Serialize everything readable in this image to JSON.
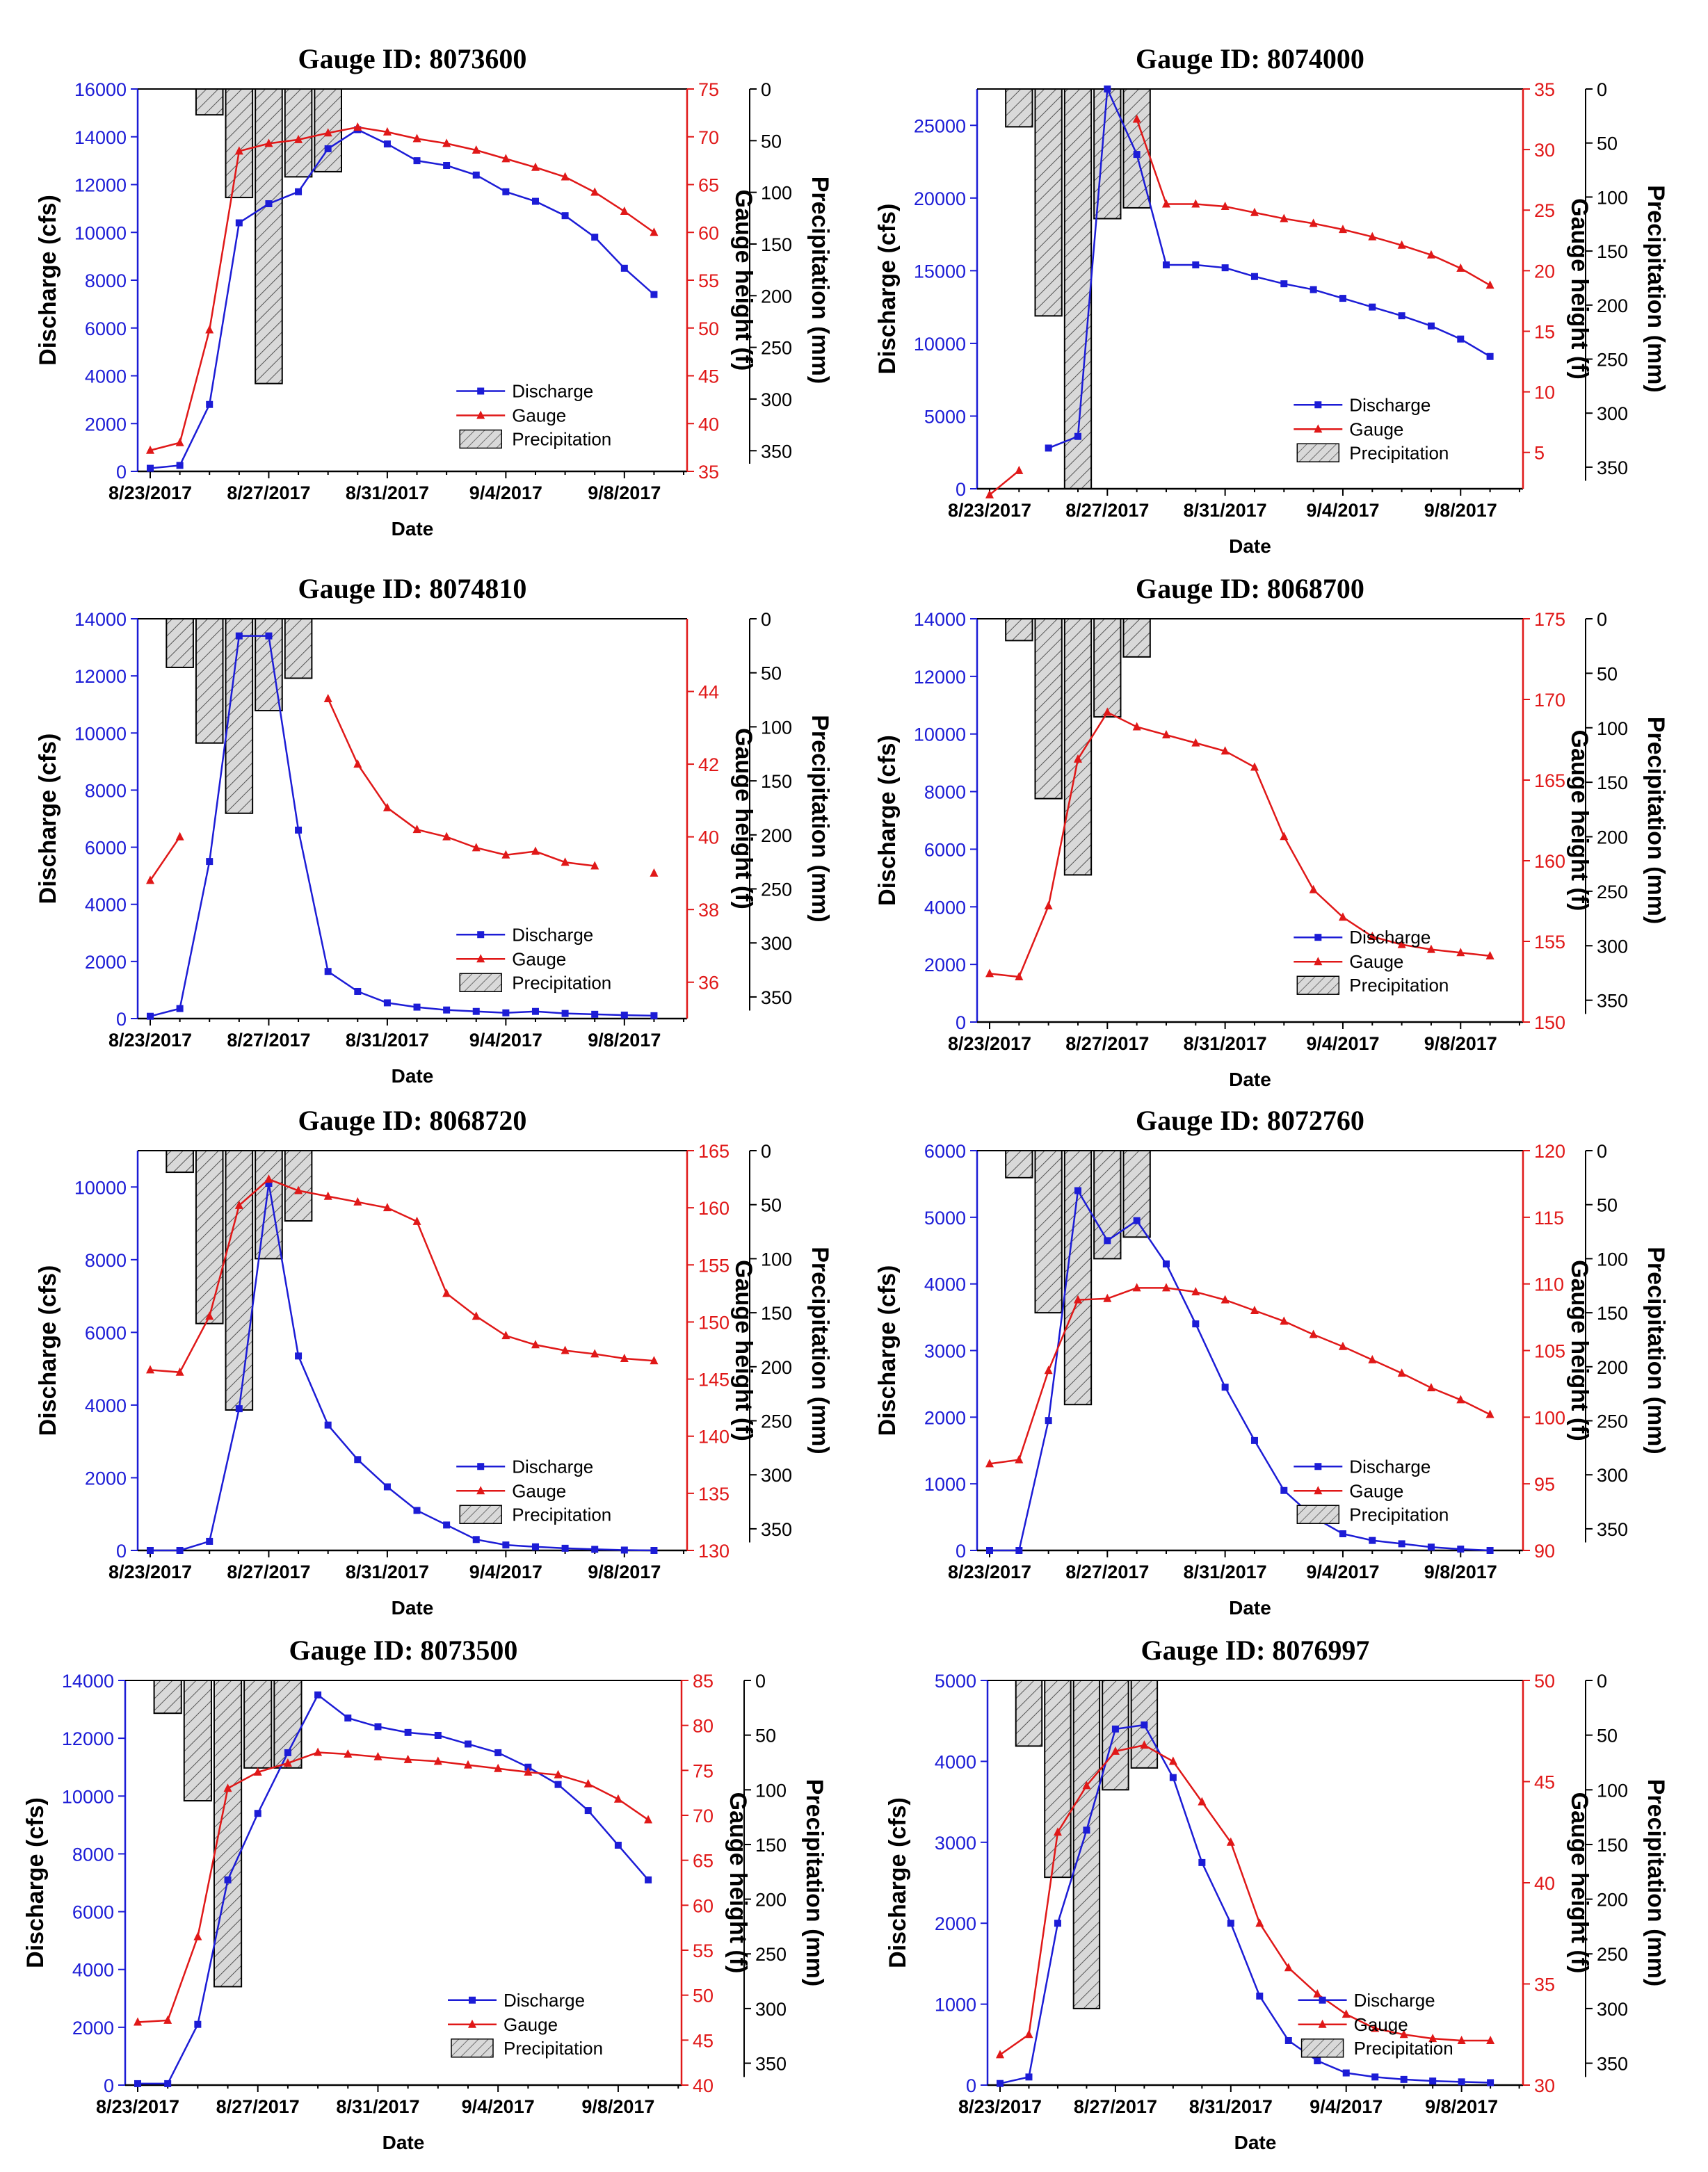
{
  "figure": {
    "common": {
      "dates": [
        "8/23/2017",
        "8/24/2017",
        "8/25/2017",
        "8/26/2017",
        "8/27/2017",
        "8/28/2017",
        "8/29/2017",
        "8/30/2017",
        "8/31/2017",
        "9/1/2017",
        "9/2/2017",
        "9/3/2017",
        "9/4/2017",
        "9/5/2017",
        "9/6/2017",
        "9/7/2017",
        "9/8/2017",
        "9/9/2017",
        "9/10/2017"
      ],
      "date_ticks": [
        "8/23/2017",
        "8/27/2017",
        "8/31/2017",
        "9/4/2017",
        "9/8/2017"
      ],
      "xlabel": "Date",
      "ylabel_left": "Discharge (cfs)",
      "ylabel_right": "Gauge height (f)",
      "ylabel_precip": "Precipitation (mm)",
      "precip_ticks": [
        0,
        50,
        100,
        150,
        200,
        250,
        300,
        350
      ],
      "legend": [
        "Discharge",
        "Gauge",
        "Precipitation"
      ],
      "colors": {
        "discharge": "#1c1cd6",
        "gauge": "#e01818",
        "bar_fill": "#d9d9d9",
        "axis": "#000000"
      }
    }
  },
  "chart_data": [
    {
      "type": "line",
      "title": "Gauge ID: 8073600",
      "categories_ref": "figure.common.dates",
      "ylim": [
        0,
        16000
      ],
      "yticks": [
        0,
        2000,
        4000,
        6000,
        8000,
        10000,
        12000,
        14000,
        16000
      ],
      "y2lim": [
        35,
        75
      ],
      "y2ticks": [
        35,
        40,
        45,
        50,
        55,
        60,
        65,
        70,
        75
      ],
      "precip_lim": [
        0,
        370
      ],
      "series": [
        {
          "name": "Discharge",
          "axis": "left",
          "values": [
            130,
            250,
            2800,
            10400,
            11200,
            11700,
            13500,
            14300,
            13700,
            13000,
            12800,
            12400,
            11700,
            11300,
            10700,
            9800,
            8500,
            7400,
            null
          ]
        },
        {
          "name": "Gauge",
          "axis": "right",
          "values": [
            37.2,
            38.0,
            49.8,
            68.5,
            69.3,
            69.7,
            70.4,
            71.0,
            70.5,
            69.8,
            69.3,
            68.6,
            67.7,
            66.8,
            65.8,
            64.2,
            62.2,
            60.0,
            null
          ]
        }
      ],
      "precipitation": [
        {
          "date": "8/25/2017",
          "value": 25
        },
        {
          "date": "8/26/2017",
          "value": 105
        },
        {
          "date": "8/27/2017",
          "value": 285
        },
        {
          "date": "8/28/2017",
          "value": 85
        },
        {
          "date": "8/29/2017",
          "value": 80
        }
      ],
      "xlabel": "Date",
      "ylabel": "Discharge (cfs)",
      "y2label": "Gauge height (f)",
      "y3label": "Precipitation (mm)"
    },
    {
      "type": "line",
      "title": "Gauge ID: 8074000",
      "categories_ref": "figure.common.dates",
      "ylim": [
        0,
        27500
      ],
      "yticks": [
        0,
        5000,
        10000,
        15000,
        20000,
        25000
      ],
      "y2lim": [
        2,
        35
      ],
      "y2ticks": [
        5,
        10,
        15,
        20,
        25,
        30,
        35
      ],
      "precip_lim": [
        0,
        370
      ],
      "series": [
        {
          "name": "Discharge",
          "axis": "left",
          "values": [
            null,
            null,
            2800,
            3600,
            27500,
            23000,
            15400,
            15400,
            15200,
            14600,
            14100,
            13700,
            13100,
            12500,
            11900,
            11200,
            10300,
            9100,
            null
          ]
        },
        {
          "name": "Gauge",
          "axis": "right",
          "values": [
            1.5,
            3.5,
            null,
            null,
            null,
            32.5,
            25.5,
            25.5,
            25.3,
            24.8,
            24.3,
            23.9,
            23.4,
            22.8,
            22.1,
            21.3,
            20.2,
            18.8,
            null
          ]
        }
      ],
      "precipitation": [
        {
          "date": "8/24/2017",
          "value": 35
        },
        {
          "date": "8/25/2017",
          "value": 210
        },
        {
          "date": "8/26/2017",
          "value": 370
        },
        {
          "date": "8/27/2017",
          "value": 120
        },
        {
          "date": "8/28/2017",
          "value": 110
        }
      ],
      "xlabel": "Date",
      "ylabel": "Discharge (cfs)",
      "y2label": "Gauge height (f)",
      "y3label": "Precipitation (mm)"
    },
    {
      "type": "line",
      "title": "Gauge ID: 8074810",
      "categories_ref": "figure.common.dates",
      "ylim": [
        0,
        14000
      ],
      "yticks": [
        0,
        2000,
        4000,
        6000,
        8000,
        10000,
        12000,
        14000
      ],
      "y2lim": [
        35,
        46
      ],
      "y2ticks": [
        36,
        38,
        40,
        42,
        44
      ],
      "precip_lim": [
        0,
        370
      ],
      "series": [
        {
          "name": "Discharge",
          "axis": "left",
          "values": [
            80,
            350,
            5500,
            13400,
            13400,
            6600,
            1650,
            950,
            550,
            400,
            300,
            250,
            200,
            250,
            180,
            150,
            120,
            100,
            null
          ]
        },
        {
          "name": "Gauge",
          "axis": "right",
          "values": [
            38.8,
            40.0,
            null,
            null,
            null,
            null,
            43.8,
            42.0,
            40.8,
            40.2,
            40.0,
            39.7,
            39.5,
            39.6,
            39.3,
            39.2,
            null,
            39.0,
            null
          ]
        }
      ],
      "precipitation": [
        {
          "date": "8/24/2017",
          "value": 45
        },
        {
          "date": "8/25/2017",
          "value": 115
        },
        {
          "date": "8/26/2017",
          "value": 180
        },
        {
          "date": "8/27/2017",
          "value": 85
        },
        {
          "date": "8/28/2017",
          "value": 55
        }
      ],
      "xlabel": "Date",
      "ylabel": "Discharge (cfs)",
      "y2label": "Gauge height (f)",
      "y3label": "Precipitation (mm)"
    },
    {
      "type": "line",
      "title": "Gauge ID: 8068700",
      "categories_ref": "figure.common.dates",
      "ylim": [
        0,
        14000
      ],
      "yticks": [
        0,
        2000,
        4000,
        6000,
        8000,
        10000,
        12000,
        14000
      ],
      "y2lim": [
        150,
        175
      ],
      "y2ticks": [
        150,
        155,
        160,
        165,
        170,
        175
      ],
      "precip_lim": [
        0,
        370
      ],
      "series": [
        {
          "name": "Gauge",
          "axis": "right",
          "values": [
            153.0,
            152.8,
            157.2,
            166.3,
            169.2,
            168.3,
            167.8,
            167.3,
            166.8,
            165.8,
            161.5,
            158.2,
            156.5,
            155.3,
            154.8,
            154.5,
            154.3,
            154.1,
            null
          ]
        }
      ],
      "precipitation": [
        {
          "date": "8/24/2017",
          "value": 20
        },
        {
          "date": "8/25/2017",
          "value": 165
        },
        {
          "date": "8/26/2017",
          "value": 235
        },
        {
          "date": "8/27/2017",
          "value": 90
        },
        {
          "date": "8/28/2017",
          "value": 35
        }
      ],
      "xlabel": "Date",
      "ylabel": "Discharge (cfs)",
      "y2label": "Gauge height (f)",
      "y3label": "Precipitation (mm)"
    },
    {
      "type": "line",
      "title": "Gauge ID: 8068720",
      "categories_ref": "figure.common.dates",
      "ylim": [
        0,
        11000
      ],
      "yticks": [
        0,
        2000,
        4000,
        6000,
        8000,
        10000
      ],
      "y2lim": [
        130,
        165
      ],
      "y2ticks": [
        130,
        135,
        140,
        145,
        150,
        155,
        160,
        165
      ],
      "precip_lim": [
        0,
        370
      ],
      "series": [
        {
          "name": "Discharge",
          "axis": "left",
          "values": [
            0,
            0,
            250,
            3900,
            10100,
            5350,
            3450,
            2500,
            1750,
            1100,
            700,
            300,
            150,
            100,
            60,
            30,
            10,
            0,
            null
          ]
        },
        {
          "name": "Gauge",
          "axis": "right",
          "values": [
            145.8,
            145.6,
            150.5,
            160.2,
            162.5,
            161.5,
            161.0,
            160.5,
            160.0,
            158.8,
            152.5,
            150.5,
            148.8,
            148.0,
            147.5,
            147.2,
            146.8,
            146.6,
            null
          ]
        }
      ],
      "precipitation": [
        {
          "date": "8/24/2017",
          "value": 20
        },
        {
          "date": "8/25/2017",
          "value": 160
        },
        {
          "date": "8/26/2017",
          "value": 240
        },
        {
          "date": "8/27/2017",
          "value": 100
        },
        {
          "date": "8/28/2017",
          "value": 65
        }
      ],
      "xlabel": "Date",
      "ylabel": "Discharge (cfs)",
      "y2label": "Gauge height (f)",
      "y3label": "Precipitation (mm)"
    },
    {
      "type": "line",
      "title": "Gauge ID: 8072760",
      "categories_ref": "figure.common.dates",
      "ylim": [
        0,
        6000
      ],
      "yticks": [
        0,
        1000,
        2000,
        3000,
        4000,
        5000,
        6000
      ],
      "y2lim": [
        90,
        120
      ],
      "y2ticks": [
        90,
        95,
        100,
        105,
        110,
        115,
        120
      ],
      "precip_lim": [
        0,
        370
      ],
      "series": [
        {
          "name": "Discharge",
          "axis": "left",
          "values": [
            0,
            0,
            1950,
            5400,
            4650,
            4950,
            4300,
            3400,
            2450,
            1650,
            900,
            500,
            250,
            150,
            100,
            50,
            20,
            0,
            null
          ]
        },
        {
          "name": "Gauge",
          "axis": "right",
          "values": [
            96.5,
            96.8,
            103.5,
            108.8,
            108.9,
            109.7,
            109.7,
            109.4,
            108.8,
            108.0,
            107.2,
            106.2,
            105.3,
            104.3,
            103.3,
            102.2,
            101.3,
            100.2,
            null
          ]
        }
      ],
      "precipitation": [
        {
          "date": "8/24/2017",
          "value": 25
        },
        {
          "date": "8/25/2017",
          "value": 150
        },
        {
          "date": "8/26/2017",
          "value": 235
        },
        {
          "date": "8/27/2017",
          "value": 100
        },
        {
          "date": "8/28/2017",
          "value": 80
        }
      ],
      "xlabel": "Date",
      "ylabel": "Discharge (cfs)",
      "y2label": "Gauge height (f)",
      "y3label": "Precipitation (mm)"
    },
    {
      "type": "line",
      "title": "Gauge ID: 8073500",
      "categories_ref": "figure.common.dates",
      "ylim": [
        0,
        14000
      ],
      "yticks": [
        0,
        2000,
        4000,
        6000,
        8000,
        10000,
        12000,
        14000
      ],
      "y2lim": [
        40,
        85
      ],
      "y2ticks": [
        40,
        45,
        50,
        55,
        60,
        65,
        70,
        75,
        80,
        85
      ],
      "precip_lim": [
        0,
        370
      ],
      "series": [
        {
          "name": "Discharge",
          "axis": "left",
          "values": [
            50,
            50,
            2100,
            7100,
            9400,
            11500,
            13500,
            12700,
            12400,
            12200,
            12100,
            11800,
            11500,
            11000,
            10400,
            9500,
            8300,
            7100,
            null
          ]
        },
        {
          "name": "Gauge",
          "axis": "right",
          "values": [
            47.0,
            47.2,
            56.5,
            73.0,
            74.8,
            75.8,
            77.0,
            76.8,
            76.5,
            76.2,
            76.0,
            75.6,
            75.2,
            74.8,
            74.5,
            73.5,
            71.8,
            69.5,
            null
          ]
        }
      ],
      "precipitation": [
        {
          "date": "8/24/2017",
          "value": 30
        },
        {
          "date": "8/25/2017",
          "value": 110
        },
        {
          "date": "8/26/2017",
          "value": 280
        },
        {
          "date": "8/27/2017",
          "value": 80
        },
        {
          "date": "8/28/2017",
          "value": 80
        }
      ],
      "xlabel": "Date",
      "ylabel": "Discharge (cfs)",
      "y2label": "Gauge height (f)",
      "y3label": "Precipitation (mm)"
    },
    {
      "type": "line",
      "title": "Gauge ID: 8076997",
      "categories_ref": "figure.common.dates",
      "ylim": [
        0,
        5000
      ],
      "yticks": [
        0,
        1000,
        2000,
        3000,
        4000,
        5000
      ],
      "y2lim": [
        30,
        50
      ],
      "y2ticks": [
        30,
        35,
        40,
        45,
        50
      ],
      "precip_lim": [
        0,
        370
      ],
      "series": [
        {
          "name": "Discharge",
          "axis": "left",
          "values": [
            20,
            100,
            2000,
            3150,
            4400,
            4450,
            3800,
            2750,
            2000,
            1100,
            550,
            300,
            150,
            100,
            70,
            50,
            40,
            30,
            null
          ]
        },
        {
          "name": "Gauge",
          "axis": "right",
          "values": [
            31.5,
            32.5,
            42.5,
            44.8,
            46.5,
            46.8,
            46.0,
            44.0,
            42.0,
            38.0,
            35.8,
            34.5,
            33.5,
            32.8,
            32.5,
            32.3,
            32.2,
            32.2,
            null
          ]
        }
      ],
      "precipitation": [
        {
          "date": "8/24/2017",
          "value": 60
        },
        {
          "date": "8/25/2017",
          "value": 180
        },
        {
          "date": "8/26/2017",
          "value": 300
        },
        {
          "date": "8/27/2017",
          "value": 100
        },
        {
          "date": "8/28/2017",
          "value": 80
        }
      ],
      "xlabel": "Date",
      "ylabel": "Discharge (cfs)",
      "y2label": "Gauge height (f)",
      "y3label": "Precipitation (mm)"
    }
  ]
}
